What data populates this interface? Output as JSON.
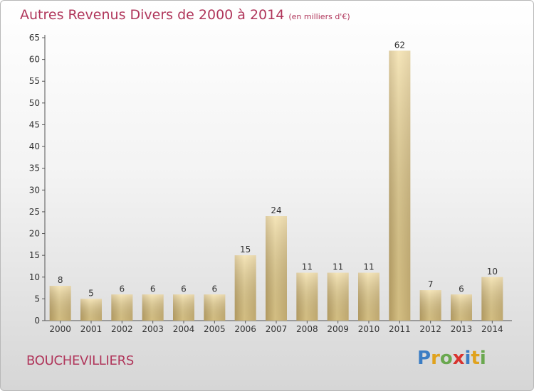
{
  "header": {
    "title": "Autres Revenus Divers de 2000 à 2014",
    "unit": "(en milliers d'€)"
  },
  "footer": {
    "commune": "BOUCHEVILLIERS",
    "logo_letters": [
      "P",
      "r",
      "o",
      "x",
      "i",
      "t",
      "i"
    ]
  },
  "colors": {
    "title": "#b0365b",
    "bar_light": "#f3dc9c",
    "bar_dark": "#c8ad6c"
  },
  "chart_data": {
    "type": "bar",
    "categories": [
      "2000",
      "2001",
      "2002",
      "2003",
      "2004",
      "2005",
      "2006",
      "2007",
      "2008",
      "2009",
      "2010",
      "2011",
      "2012",
      "2013",
      "2014"
    ],
    "values": [
      8,
      5,
      6,
      6,
      6,
      6,
      15,
      24,
      11,
      11,
      11,
      62,
      7,
      6,
      10
    ],
    "title": "Autres Revenus Divers de 2000 à 2014",
    "xlabel": "",
    "ylabel": "",
    "ylim": [
      0,
      65
    ],
    "yticks": [
      0,
      5,
      10,
      15,
      20,
      25,
      30,
      35,
      40,
      45,
      50,
      55,
      60,
      65
    ],
    "grid": false
  }
}
